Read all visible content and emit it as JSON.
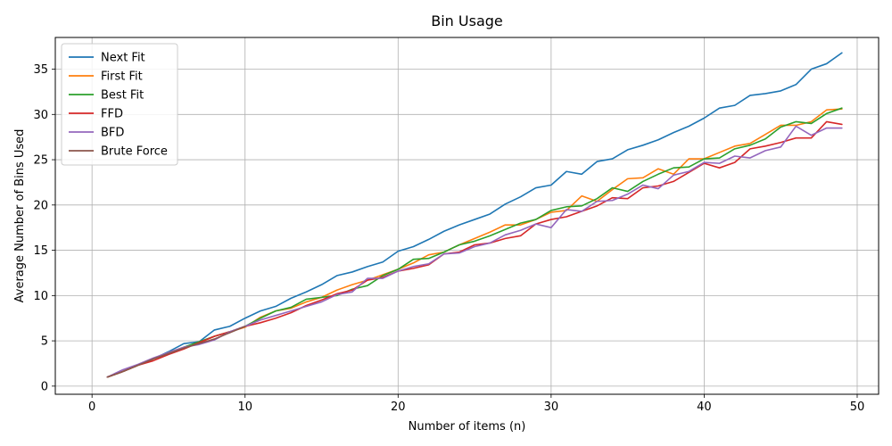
{
  "chart_data": {
    "type": "line",
    "title": "Bin Usage",
    "xlabel": "Number of items (n)",
    "ylabel": "Average Number of Bins Used",
    "xlim": [
      -2.4,
      51.4
    ],
    "ylim": [
      -0.9,
      38.5
    ],
    "xticks": [
      0,
      10,
      20,
      30,
      40,
      50
    ],
    "yticks": [
      0,
      5,
      10,
      15,
      20,
      25,
      30,
      35
    ],
    "grid": true,
    "legend_position": "top-left",
    "series": [
      {
        "name": "Next Fit",
        "color": "#1f77b4",
        "x": [
          1,
          2,
          3,
          4,
          5,
          6,
          7,
          8,
          9,
          10,
          11,
          12,
          13,
          14,
          15,
          16,
          17,
          18,
          19,
          20,
          21,
          22,
          23,
          24,
          25,
          26,
          27,
          28,
          29,
          30,
          31,
          32,
          33,
          34,
          35,
          36,
          37,
          38,
          39,
          40,
          41,
          42,
          43,
          44,
          45,
          46,
          47,
          48,
          49
        ],
        "values": [
          1.0,
          1.6,
          2.3,
          3.0,
          3.8,
          4.7,
          4.9,
          6.2,
          6.6,
          7.5,
          8.3,
          8.8,
          9.7,
          10.4,
          11.2,
          12.2,
          12.6,
          13.2,
          13.7,
          14.9,
          15.4,
          16.2,
          17.1,
          17.8,
          18.4,
          19.0,
          20.1,
          20.9,
          21.9,
          22.2,
          23.7,
          23.4,
          24.8,
          25.1,
          26.1,
          26.6,
          27.2,
          28.0,
          28.7,
          29.6,
          30.7,
          31.0,
          32.1,
          32.3,
          32.6,
          33.3,
          35.0,
          35.6,
          36.8
        ]
      },
      {
        "name": "First Fit",
        "color": "#ff7f0e",
        "x": [
          1,
          2,
          3,
          4,
          5,
          6,
          7,
          8,
          9,
          10,
          11,
          12,
          13,
          14,
          15,
          16,
          17,
          18,
          19,
          20,
          21,
          22,
          23,
          24,
          25,
          26,
          27,
          28,
          29,
          30,
          31,
          32,
          33,
          34,
          35,
          36,
          37,
          38,
          39,
          40,
          41,
          42,
          43,
          44,
          45,
          46,
          47,
          48,
          49
        ],
        "values": [
          1.0,
          1.6,
          2.3,
          3.0,
          3.7,
          4.3,
          4.8,
          5.5,
          6.0,
          6.5,
          7.6,
          8.3,
          8.6,
          9.3,
          9.8,
          10.6,
          11.2,
          11.7,
          12.3,
          12.9,
          13.6,
          14.5,
          14.8,
          15.6,
          16.3,
          17.0,
          17.8,
          17.8,
          18.4,
          19.2,
          19.4,
          21.0,
          20.4,
          21.7,
          22.9,
          23.0,
          24.0,
          23.4,
          25.1,
          25.1,
          25.8,
          26.5,
          26.8,
          27.8,
          28.8,
          28.8,
          29.2,
          30.5,
          30.6
        ]
      },
      {
        "name": "Best Fit",
        "color": "#2ca02c",
        "x": [
          1,
          2,
          3,
          4,
          5,
          6,
          7,
          8,
          9,
          10,
          11,
          12,
          13,
          14,
          15,
          16,
          17,
          18,
          19,
          20,
          21,
          22,
          23,
          24,
          25,
          26,
          27,
          28,
          29,
          30,
          31,
          32,
          33,
          34,
          35,
          36,
          37,
          38,
          39,
          40,
          41,
          42,
          43,
          44,
          45,
          46,
          47,
          48,
          49
        ],
        "values": [
          1.0,
          1.6,
          2.3,
          3.0,
          3.6,
          4.3,
          4.9,
          5.5,
          6.0,
          6.6,
          7.5,
          8.3,
          8.7,
          9.6,
          9.8,
          10.0,
          10.7,
          11.1,
          12.2,
          12.9,
          14.0,
          14.1,
          14.8,
          15.6,
          16.0,
          16.6,
          17.3,
          18.0,
          18.4,
          19.4,
          19.8,
          19.9,
          20.7,
          21.9,
          21.5,
          22.6,
          23.4,
          24.1,
          24.2,
          25.1,
          25.2,
          26.2,
          26.6,
          27.3,
          28.6,
          29.2,
          29.0,
          30.1,
          30.7
        ]
      },
      {
        "name": "FFD",
        "color": "#d62728",
        "x": [
          1,
          2,
          3,
          4,
          5,
          6,
          7,
          8,
          9,
          10,
          11,
          12,
          13,
          14,
          15,
          16,
          17,
          18,
          19,
          20,
          21,
          22,
          23,
          24,
          25,
          26,
          27,
          28,
          29,
          30,
          31,
          32,
          33,
          34,
          35,
          36,
          37,
          38,
          39,
          40,
          41,
          42,
          43,
          44,
          45,
          46,
          47,
          48,
          49
        ],
        "values": [
          1.0,
          1.6,
          2.3,
          2.8,
          3.5,
          4.1,
          4.8,
          5.5,
          6.0,
          6.6,
          7.0,
          7.5,
          8.1,
          8.9,
          9.5,
          10.2,
          10.6,
          11.7,
          12.0,
          12.7,
          13.0,
          13.4,
          14.6,
          14.8,
          15.6,
          15.8,
          16.3,
          16.6,
          17.9,
          18.4,
          18.7,
          19.3,
          19.9,
          20.8,
          20.7,
          21.9,
          22.1,
          22.6,
          23.6,
          24.6,
          24.1,
          24.7,
          26.2,
          26.5,
          26.9,
          27.4,
          27.4,
          29.2,
          28.9
        ]
      },
      {
        "name": "BFD",
        "color": "#9467bd",
        "x": [
          1,
          2,
          3,
          4,
          5,
          6,
          7,
          8,
          9,
          10,
          11,
          12,
          13,
          14,
          15,
          16,
          17,
          18,
          19,
          20,
          21,
          22,
          23,
          24,
          25,
          26,
          27,
          28,
          29,
          30,
          31,
          32,
          33,
          34,
          35,
          36,
          37,
          38,
          39,
          40,
          41,
          42,
          43,
          44,
          45,
          46,
          47,
          48,
          49
        ],
        "values": [
          1.0,
          1.8,
          2.4,
          3.1,
          3.7,
          4.3,
          4.6,
          5.1,
          6.0,
          6.6,
          7.3,
          7.8,
          8.3,
          8.8,
          9.3,
          10.1,
          10.4,
          11.9,
          11.9,
          12.7,
          13.2,
          13.5,
          14.6,
          14.7,
          15.4,
          15.8,
          16.7,
          17.2,
          17.9,
          17.5,
          19.5,
          19.3,
          20.4,
          20.5,
          21.2,
          22.2,
          21.8,
          23.3,
          23.7,
          24.7,
          24.6,
          25.4,
          25.2,
          26.0,
          26.4,
          28.7,
          27.7,
          28.5,
          28.5
        ]
      },
      {
        "name": "Brute Force",
        "color": "#8c564b",
        "x": [
          1,
          2,
          3,
          4,
          5,
          6,
          7,
          8,
          9,
          10
        ],
        "values": [
          1.0,
          1.6,
          2.3,
          3.0,
          3.6,
          4.2,
          4.7,
          5.2,
          5.9,
          6.6
        ]
      }
    ]
  }
}
